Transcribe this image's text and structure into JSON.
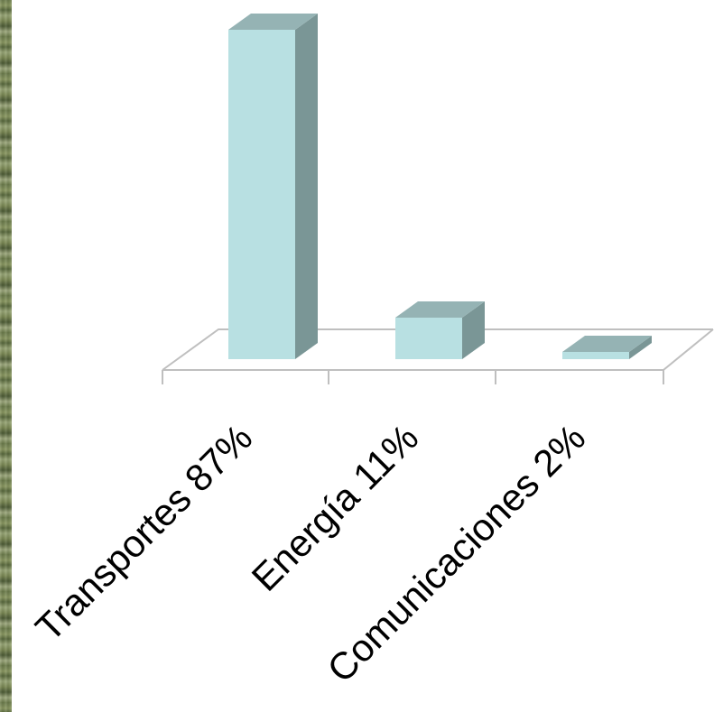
{
  "chart_data": {
    "type": "bar",
    "style": "3d-column",
    "categories": [
      "Transportes 87%",
      "Energía 11%",
      "Comunicaciones 2%"
    ],
    "values": [
      87,
      11,
      2
    ],
    "ylim": [
      0,
      87
    ],
    "grid": false,
    "legend": "none",
    "colors": {
      "bar_front": "#b8e0e2",
      "bar_side": "#7a9696",
      "bar_top": "#95b3b4",
      "floor_line": "#bfbfbf"
    }
  }
}
